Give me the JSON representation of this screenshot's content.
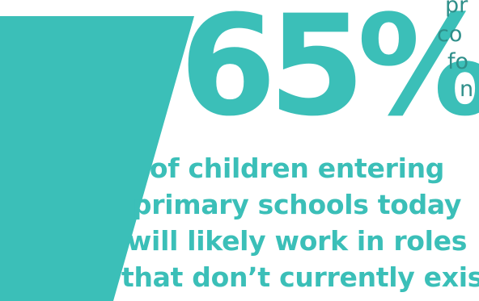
{
  "statistic": {
    "value": "65%",
    "caption_lines": [
      "of children entering",
      "primary schools today",
      "will likely work in roles",
      "that don’t currently exist"
    ]
  },
  "side_text_fragments": [
    "pr",
    "co",
    "fo",
    "n"
  ],
  "colors": {
    "accent": "#3bbfb8",
    "side_text": "#2f8f8a",
    "background": "#ffffff"
  }
}
